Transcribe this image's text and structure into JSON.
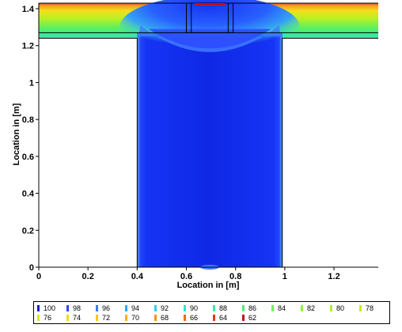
{
  "chart_data": {
    "type": "heatmap",
    "title": "",
    "xlabel": "Location in [m]",
    "ylabel": "Location in [m]",
    "xlim": [
      0,
      1.38
    ],
    "ylim": [
      0,
      1.43
    ],
    "xticks": [
      "0",
      "0.2",
      "0.4",
      "0.6",
      "0.8",
      "1",
      "1.2"
    ],
    "yticks": [
      "0",
      "0.2",
      "0.4",
      "0.6",
      "0.8",
      "1",
      "1.2",
      "1.4"
    ],
    "grid": false,
    "legend_position": "bottom",
    "legend": [
      {
        "label": "100",
        "color": "#0a1edc"
      },
      {
        "label": "98",
        "color": "#2c4bff"
      },
      {
        "label": "96",
        "color": "#3f7bff"
      },
      {
        "label": "94",
        "color": "#33a6f5"
      },
      {
        "label": "92",
        "color": "#2dd2f0"
      },
      {
        "label": "90",
        "color": "#2ae6c8"
      },
      {
        "label": "88",
        "color": "#33eea0"
      },
      {
        "label": "86",
        "color": "#4cf07a"
      },
      {
        "label": "84",
        "color": "#6cf25a"
      },
      {
        "label": "82",
        "color": "#8cf43e"
      },
      {
        "label": "80",
        "color": "#aaf02a"
      },
      {
        "label": "78",
        "color": "#c6ec20"
      },
      {
        "label": "76",
        "color": "#dce61a"
      },
      {
        "label": "74",
        "color": "#efdc14"
      },
      {
        "label": "72",
        "color": "#f8c810"
      },
      {
        "label": "70",
        "color": "#fbb00e"
      },
      {
        "label": "68",
        "color": "#fb920c"
      },
      {
        "label": "66",
        "color": "#f2680c"
      },
      {
        "label": "64",
        "color": "#e23a0e"
      },
      {
        "label": "62",
        "color": "#c41010"
      }
    ],
    "domain": {
      "outer_x": [
        0,
        1.38
      ],
      "top_band_y": [
        1.24,
        1.43
      ],
      "column_x": [
        0.4,
        0.99
      ],
      "column_y": [
        0,
        1.27
      ],
      "inlet_box_x": [
        0.6,
        0.79
      ],
      "inlet_box_y": [
        1.27,
        1.43
      ],
      "inlet_divider_x": [
        0.62,
        0.77
      ]
    }
  }
}
